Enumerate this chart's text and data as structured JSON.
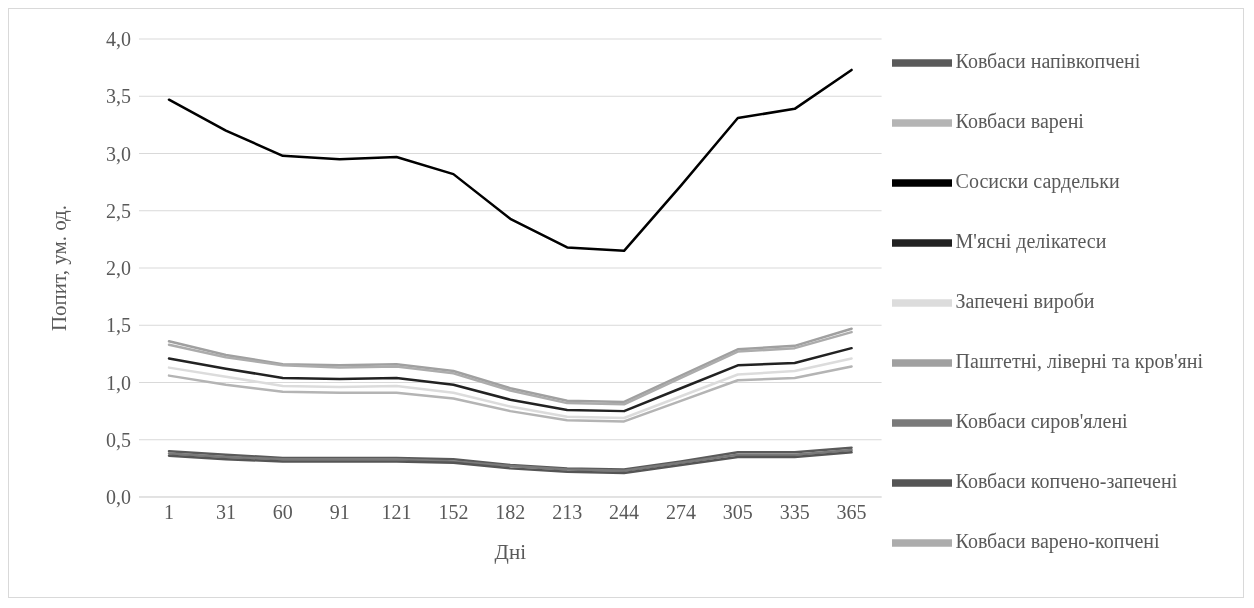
{
  "chart_data": {
    "type": "line",
    "xlabel": "Дні",
    "ylabel": "Попит,  ум. од.",
    "categories": [
      "1",
      "31",
      "60",
      "91",
      "121",
      "152",
      "182",
      "213",
      "244",
      "274",
      "305",
      "335",
      "365"
    ],
    "ylim": [
      0,
      4
    ],
    "yticks": [
      {
        "value": 0,
        "label": "0,0"
      },
      {
        "value": 0.5,
        "label": "0,5"
      },
      {
        "value": 1,
        "label": "1,0"
      },
      {
        "value": 1.5,
        "label": "1,5"
      },
      {
        "value": 2,
        "label": "2,0"
      },
      {
        "value": 2.5,
        "label": "2,5"
      },
      {
        "value": 3,
        "label": "3,0"
      },
      {
        "value": 3.5,
        "label": "3,5"
      },
      {
        "value": 4,
        "label": "4,0"
      }
    ],
    "grid": "y",
    "legend": "right",
    "marker": "none",
    "line_style": "solid",
    "series": [
      {
        "name": "Ковбаси напівкопчені",
        "color": "#5a5a5a",
        "values": [
          0.4,
          0.37,
          0.34,
          0.34,
          0.34,
          0.33,
          0.28,
          0.25,
          0.24,
          0.31,
          0.39,
          0.39,
          0.43
        ]
      },
      {
        "name": "Ковбаси варені",
        "color": "#b4b4b4",
        "values": [
          1.06,
          0.98,
          0.92,
          0.91,
          0.91,
          0.86,
          0.75,
          0.67,
          0.66,
          0.84,
          1.02,
          1.04,
          1.14
        ]
      },
      {
        "name": "Сосиски сардельки",
        "color": "#000000",
        "values": [
          3.47,
          3.2,
          2.98,
          2.95,
          2.97,
          2.82,
          2.43,
          2.18,
          2.15,
          2.72,
          3.31,
          3.39,
          3.73
        ]
      },
      {
        "name": "М'ясні делікатеси",
        "color": "#222222",
        "values": [
          1.21,
          1.12,
          1.04,
          1.03,
          1.04,
          0.98,
          0.85,
          0.76,
          0.75,
          0.95,
          1.15,
          1.17,
          1.3
        ]
      },
      {
        "name": "Запечені вироби",
        "color": "#dcdcdc",
        "values": [
          1.13,
          1.05,
          0.97,
          0.96,
          0.97,
          0.91,
          0.79,
          0.7,
          0.69,
          0.88,
          1.07,
          1.1,
          1.21
        ]
      },
      {
        "name": "Паштетні, ліверні та кров'яні",
        "color": "#a0a0a0",
        "values": [
          1.36,
          1.24,
          1.16,
          1.15,
          1.16,
          1.1,
          0.95,
          0.84,
          0.83,
          1.06,
          1.29,
          1.32,
          1.47
        ]
      },
      {
        "name": "Ковбаси сиров'ялені",
        "color": "#7a7a7a",
        "values": [
          0.38,
          0.35,
          0.33,
          0.33,
          0.33,
          0.31,
          0.27,
          0.24,
          0.23,
          0.3,
          0.37,
          0.37,
          0.41
        ]
      },
      {
        "name": "Ковбаси копчено-запечені",
        "color": "#555555",
        "values": [
          0.36,
          0.33,
          0.31,
          0.31,
          0.31,
          0.3,
          0.25,
          0.22,
          0.21,
          0.28,
          0.35,
          0.35,
          0.39
        ]
      },
      {
        "name": "Ковбаси варено-копчені",
        "color": "#acacac",
        "values": [
          1.33,
          1.22,
          1.15,
          1.13,
          1.14,
          1.08,
          0.93,
          0.82,
          0.81,
          1.04,
          1.27,
          1.3,
          1.44
        ]
      }
    ]
  }
}
